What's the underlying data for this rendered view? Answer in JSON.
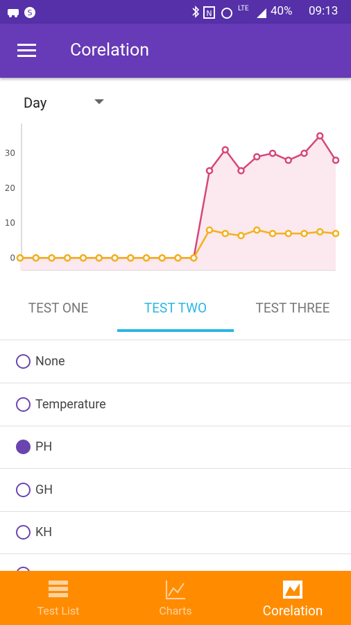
{
  "status_bar": {
    "network": "LTE",
    "battery": "40%",
    "time": "09:13"
  },
  "app_bar": {
    "title": "Corelation"
  },
  "dropdown": {
    "value": "Day"
  },
  "chart_data": {
    "type": "line",
    "categories": [
      null,
      null,
      null,
      null,
      null,
      null,
      null,
      null,
      null,
      null,
      null,
      null,
      null,
      null,
      null,
      null,
      null,
      null,
      null,
      null,
      null
    ],
    "series": [
      {
        "color": "#d6457a",
        "fill_color": "#fce8ef",
        "values": [
          0,
          0,
          0,
          0,
          0,
          0,
          0,
          0,
          0,
          0,
          0,
          0,
          25,
          31,
          25,
          29,
          30,
          28,
          30,
          35,
          28
        ]
      },
      {
        "color": "#f2b21b",
        "values": [
          0,
          0,
          0,
          0,
          0,
          0,
          0,
          0,
          0,
          0,
          0,
          0,
          8,
          7,
          6.4,
          8,
          7,
          7,
          7,
          7.5,
          7
        ]
      }
    ],
    "ylim": [
      -3.5,
      38.5
    ],
    "yticks": [
      0,
      10,
      20,
      30
    ],
    "grid": false
  },
  "tabs": {
    "items": [
      "TEST ONE",
      "TEST TWO",
      "TEST THREE"
    ],
    "selected": 1
  },
  "options": {
    "items": [
      "None",
      "Temperature",
      "PH",
      "GH",
      "KH"
    ],
    "selected": 2
  },
  "bottom_nav": {
    "items": [
      "Test List",
      "Charts",
      "Corelation"
    ],
    "selected": 2
  }
}
